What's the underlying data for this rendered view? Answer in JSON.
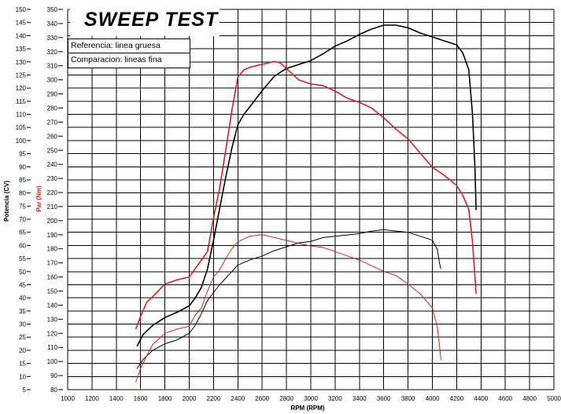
{
  "chart_data": {
    "type": "line",
    "title": "SWEEP TEST",
    "legend": [
      "Referencia: linea gruesa",
      "Comparacion: lineas fina"
    ],
    "legend_placement": "top-left",
    "grid": true,
    "xlabel": "RPM (RPM)",
    "xlim": [
      1000,
      5000
    ],
    "xticks": [
      1000,
      1200,
      1400,
      1600,
      1800,
      2000,
      2200,
      2400,
      2600,
      2800,
      3000,
      3200,
      3400,
      3600,
      3800,
      4000,
      4200,
      4400,
      4600,
      4800,
      5000
    ],
    "ylabel_left": "Potencia (CV)",
    "ylabel_left_color": "#000000",
    "ylim_left": [
      5,
      150
    ],
    "yticks_left": [
      5,
      10,
      15,
      20,
      25,
      30,
      35,
      40,
      45,
      50,
      55,
      60,
      65,
      70,
      75,
      80,
      85,
      90,
      95,
      100,
      105,
      110,
      115,
      120,
      125,
      130,
      135,
      140,
      145,
      150
    ],
    "ylabel_right": "Par (Nm)",
    "ylabel_right_color": "#d42020",
    "ylim_right": [
      80,
      350
    ],
    "yticks_right": [
      80,
      90,
      100,
      110,
      120,
      130,
      140,
      150,
      160,
      170,
      180,
      190,
      200,
      210,
      220,
      230,
      240,
      250,
      260,
      270,
      280,
      290,
      300,
      310,
      320,
      330,
      340,
      350
    ],
    "series": [
      {
        "color": "#000000",
        "width": 1.6,
        "axis": "left",
        "x": [
          1570,
          1620,
          1700,
          1800,
          1900,
          2000,
          2050,
          2100,
          2150,
          2200,
          2250,
          2300,
          2350,
          2400,
          2450,
          2500,
          2600,
          2700,
          2800,
          2900,
          3000,
          3100,
          3200,
          3300,
          3400,
          3500,
          3600,
          3700,
          3800,
          3900,
          4000,
          4100,
          4200,
          4250,
          4300,
          4330,
          4350,
          4360
        ],
        "y": [
          21.5,
          26,
          29.5,
          32.5,
          34.5,
          37,
          40,
          44,
          51,
          62,
          74,
          86,
          97,
          106,
          110,
          113,
          119,
          124.5,
          127.5,
          129,
          130.5,
          133,
          136,
          138,
          140.5,
          142.5,
          144,
          144,
          143,
          141,
          139.5,
          138,
          136.5,
          133.5,
          127,
          110,
          90,
          73.5
        ]
      },
      {
        "color": "#000000",
        "width": 1.0,
        "axis": "left",
        "x": [
          1570,
          1620,
          1700,
          1800,
          1900,
          2000,
          2050,
          2100,
          2150,
          2200,
          2250,
          2300,
          2350,
          2400,
          2500,
          2600,
          2700,
          2800,
          2900,
          3000,
          3100,
          3200,
          3300,
          3400,
          3500,
          3600,
          3700,
          3800,
          3900,
          4000,
          4040,
          4060,
          4070
        ],
        "y": [
          13,
          16.5,
          20,
          22.5,
          24,
          26.5,
          29.5,
          34,
          39,
          42,
          45,
          47.5,
          50,
          52.5,
          54.5,
          56,
          58,
          59.5,
          61,
          61.5,
          63,
          63.5,
          64,
          64.5,
          65.5,
          66,
          65.5,
          65,
          63.5,
          62,
          58.5,
          53,
          51
        ]
      },
      {
        "color": "#d42020",
        "width": 1.6,
        "axis": "right",
        "x": [
          1560,
          1600,
          1650,
          1700,
          1800,
          1900,
          2000,
          2050,
          2100,
          2150,
          2200,
          2250,
          2300,
          2350,
          2400,
          2450,
          2500,
          2550,
          2600,
          2650,
          2700,
          2750,
          2800,
          2900,
          3000,
          3100,
          3200,
          3300,
          3400,
          3500,
          3600,
          3700,
          3800,
          3900,
          4000,
          4100,
          4200,
          4250,
          4300,
          4330,
          4350,
          4360
        ],
        "y": [
          123,
          132,
          142,
          146,
          155,
          158,
          160,
          166,
          172,
          178,
          202,
          223,
          250,
          278,
          302,
          307,
          309,
          310,
          311,
          312,
          313,
          312,
          308,
          300,
          297,
          296,
          292,
          287,
          284,
          280,
          273,
          265,
          258,
          248,
          238,
          232,
          225,
          218,
          208,
          185,
          160,
          148
        ]
      },
      {
        "color": "#d42020",
        "width": 1.0,
        "axis": "right",
        "x": [
          1560,
          1600,
          1650,
          1700,
          1800,
          1900,
          2000,
          2050,
          2100,
          2150,
          2200,
          2250,
          2300,
          2350,
          2400,
          2500,
          2600,
          2700,
          2800,
          2900,
          3000,
          3100,
          3200,
          3300,
          3400,
          3500,
          3600,
          3700,
          3800,
          3900,
          4000,
          4040,
          4060,
          4070
        ],
        "y": [
          85,
          95,
          104,
          112,
          120,
          123,
          125,
          133,
          138,
          150,
          160,
          165,
          173,
          180,
          185,
          189,
          190,
          188,
          186,
          184,
          182,
          181,
          178,
          175,
          172,
          168,
          164,
          161,
          155,
          148,
          138,
          125,
          110,
          101
        ]
      }
    ]
  }
}
